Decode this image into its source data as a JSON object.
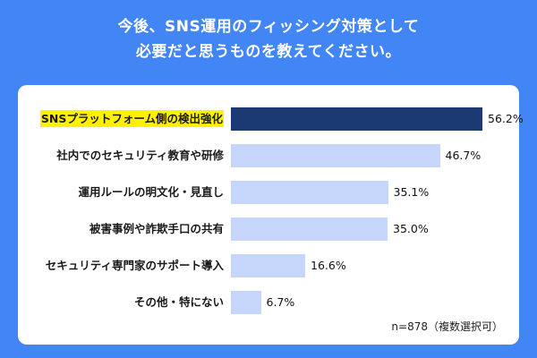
{
  "title": {
    "line1": "今後、SNS運用のフィッシング対策として",
    "line2": "必要だと思うものを教えてください。"
  },
  "chart_data": {
    "type": "bar",
    "orientation": "horizontal",
    "title": "今後、SNS運用のフィッシング対策として必要だと思うものを教えてください。",
    "categories": [
      "SNSプラットフォーム側の検出強化",
      "社内でのセキュリティ教育や研修",
      "運用ルールの明文化・見直し",
      "被害事例や詐欺手口の共有",
      "セキュリティ専門家のサポート導入",
      "その他・特にない"
    ],
    "values": [
      56.2,
      46.7,
      35.1,
      35.0,
      16.6,
      6.7
    ],
    "labels": [
      "56.2%",
      "46.7%",
      "35.1%",
      "35.0%",
      "16.6%",
      "6.7%"
    ],
    "highlight_index": 0,
    "xlim": [
      0,
      60
    ],
    "grid": false,
    "note": "n=878（複数選択可）",
    "colors": {
      "background": "#4285f4",
      "card": "#ffffff",
      "highlight_bar": "#1b3a73",
      "bar": "#c6d6fa",
      "label_highlight_bg": "#fff100",
      "title_text": "#ffffff"
    }
  }
}
